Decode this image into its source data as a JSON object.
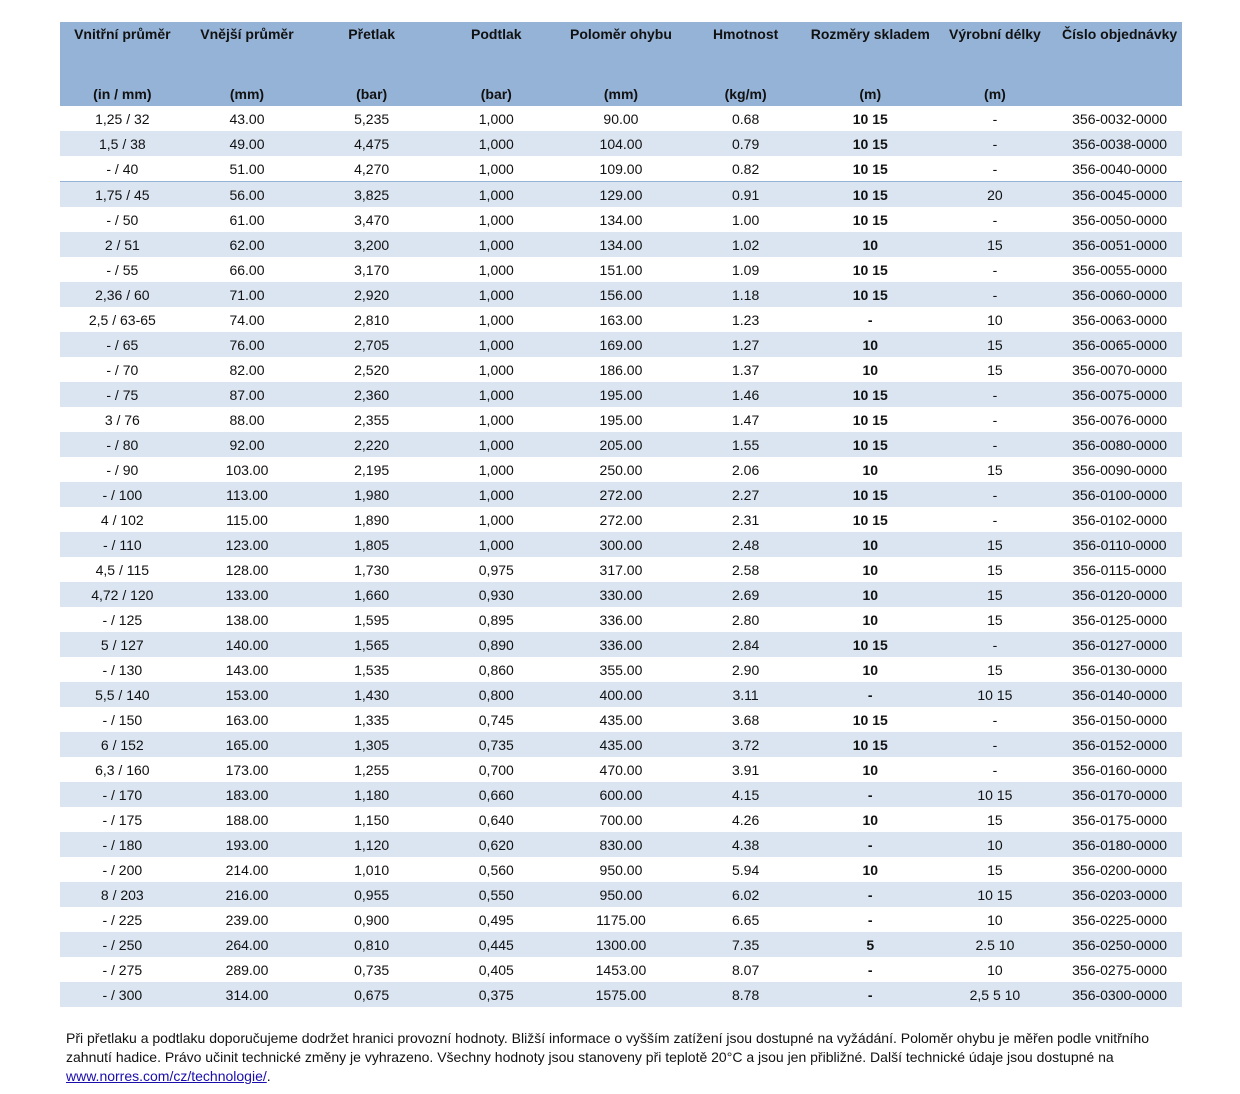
{
  "headers": [
    {
      "label": "Vnitřní průměr",
      "unit": "(in / mm)"
    },
    {
      "label": "Vnější průměr",
      "unit": "(mm)"
    },
    {
      "label": "Přetlak",
      "unit": "(bar)"
    },
    {
      "label": "Podtlak",
      "unit": "(bar)"
    },
    {
      "label": "Poloměr ohybu",
      "unit": "(mm)"
    },
    {
      "label": "Hmotnost",
      "unit": "(kg/m)"
    },
    {
      "label": "Rozměry skladem",
      "unit": "(m)"
    },
    {
      "label": "Výrobní délky",
      "unit": "(m)"
    },
    {
      "label": "Číslo objednávky",
      "unit": ""
    }
  ],
  "rows": [
    [
      "1,25 / 32",
      "43.00",
      "5,235",
      "1,000",
      "90.00",
      "0.68",
      "10 15",
      "-",
      "356-0032-0000"
    ],
    [
      "1,5 / 38",
      "49.00",
      "4,475",
      "1,000",
      "104.00",
      "0.79",
      "10 15",
      "-",
      "356-0038-0000"
    ],
    [
      "- / 40",
      "51.00",
      "4,270",
      "1,000",
      "109.00",
      "0.82",
      "10 15",
      "-",
      "356-0040-0000"
    ],
    [
      "1,75 / 45",
      "56.00",
      "3,825",
      "1,000",
      "129.00",
      "0.91",
      "10 15",
      "20",
      "356-0045-0000"
    ],
    [
      "- / 50",
      "61.00",
      "3,470",
      "1,000",
      "134.00",
      "1.00",
      "10 15",
      "-",
      "356-0050-0000"
    ],
    [
      "2 / 51",
      "62.00",
      "3,200",
      "1,000",
      "134.00",
      "1.02",
      "10",
      "15",
      "356-0051-0000"
    ],
    [
      "- / 55",
      "66.00",
      "3,170",
      "1,000",
      "151.00",
      "1.09",
      "10 15",
      "-",
      "356-0055-0000"
    ],
    [
      "2,36 / 60",
      "71.00",
      "2,920",
      "1,000",
      "156.00",
      "1.18",
      "10 15",
      "-",
      "356-0060-0000"
    ],
    [
      "2,5 / 63-65",
      "74.00",
      "2,810",
      "1,000",
      "163.00",
      "1.23",
      "-",
      "10",
      "356-0063-0000"
    ],
    [
      "- / 65",
      "76.00",
      "2,705",
      "1,000",
      "169.00",
      "1.27",
      "10",
      "15",
      "356-0065-0000"
    ],
    [
      "- / 70",
      "82.00",
      "2,520",
      "1,000",
      "186.00",
      "1.37",
      "10",
      "15",
      "356-0070-0000"
    ],
    [
      "- / 75",
      "87.00",
      "2,360",
      "1,000",
      "195.00",
      "1.46",
      "10 15",
      "-",
      "356-0075-0000"
    ],
    [
      "3 / 76",
      "88.00",
      "2,355",
      "1,000",
      "195.00",
      "1.47",
      "10 15",
      "-",
      "356-0076-0000"
    ],
    [
      "- / 80",
      "92.00",
      "2,220",
      "1,000",
      "205.00",
      "1.55",
      "10 15",
      "-",
      "356-0080-0000"
    ],
    [
      "- / 90",
      "103.00",
      "2,195",
      "1,000",
      "250.00",
      "2.06",
      "10",
      "15",
      "356-0090-0000"
    ],
    [
      "- / 100",
      "113.00",
      "1,980",
      "1,000",
      "272.00",
      "2.27",
      "10 15",
      "-",
      "356-0100-0000"
    ],
    [
      "4 / 102",
      "115.00",
      "1,890",
      "1,000",
      "272.00",
      "2.31",
      "10 15",
      "-",
      "356-0102-0000"
    ],
    [
      "- / 110",
      "123.00",
      "1,805",
      "1,000",
      "300.00",
      "2.48",
      "10",
      "15",
      "356-0110-0000"
    ],
    [
      "4,5 / 115",
      "128.00",
      "1,730",
      "0,975",
      "317.00",
      "2.58",
      "10",
      "15",
      "356-0115-0000"
    ],
    [
      "4,72 / 120",
      "133.00",
      "1,660",
      "0,930",
      "330.00",
      "2.69",
      "10",
      "15",
      "356-0120-0000"
    ],
    [
      "- / 125",
      "138.00",
      "1,595",
      "0,895",
      "336.00",
      "2.80",
      "10",
      "15",
      "356-0125-0000"
    ],
    [
      "5 / 127",
      "140.00",
      "1,565",
      "0,890",
      "336.00",
      "2.84",
      "10 15",
      "-",
      "356-0127-0000"
    ],
    [
      "- / 130",
      "143.00",
      "1,535",
      "0,860",
      "355.00",
      "2.90",
      "10",
      "15",
      "356-0130-0000"
    ],
    [
      "5,5 / 140",
      "153.00",
      "1,430",
      "0,800",
      "400.00",
      "3.11",
      "-",
      "10 15",
      "356-0140-0000"
    ],
    [
      "- / 150",
      "163.00",
      "1,335",
      "0,745",
      "435.00",
      "3.68",
      "10 15",
      "-",
      "356-0150-0000"
    ],
    [
      "6 / 152",
      "165.00",
      "1,305",
      "0,735",
      "435.00",
      "3.72",
      "10 15",
      "-",
      "356-0152-0000"
    ],
    [
      "6,3 / 160",
      "173.00",
      "1,255",
      "0,700",
      "470.00",
      "3.91",
      "10",
      "-",
      "356-0160-0000"
    ],
    [
      "- / 170",
      "183.00",
      "1,180",
      "0,660",
      "600.00",
      "4.15",
      "-",
      "10 15",
      "356-0170-0000"
    ],
    [
      "- / 175",
      "188.00",
      "1,150",
      "0,640",
      "700.00",
      "4.26",
      "10",
      "15",
      "356-0175-0000"
    ],
    [
      "- / 180",
      "193.00",
      "1,120",
      "0,620",
      "830.00",
      "4.38",
      "-",
      "10",
      "356-0180-0000"
    ],
    [
      "- / 200",
      "214.00",
      "1,010",
      "0,560",
      "950.00",
      "5.94",
      "10",
      "15",
      "356-0200-0000"
    ],
    [
      "8 / 203",
      "216.00",
      "0,955",
      "0,550",
      "950.00",
      "6.02",
      "-",
      "10 15",
      "356-0203-0000"
    ],
    [
      "- / 225",
      "239.00",
      "0,900",
      "0,495",
      "1175.00",
      "6.65",
      "-",
      "10",
      "356-0225-0000"
    ],
    [
      "- / 250",
      "264.00",
      "0,810",
      "0,445",
      "1300.00",
      "7.35",
      "5",
      "2.5 10",
      "356-0250-0000"
    ],
    [
      "- / 275",
      "289.00",
      "0,735",
      "0,405",
      "1453.00",
      "8.07",
      "-",
      "10",
      "356-0275-0000"
    ],
    [
      "- / 300",
      "314.00",
      "0,675",
      "0,375",
      "1575.00",
      "8.78",
      "-",
      "2,5 5 10",
      "356-0300-0000"
    ]
  ],
  "note": {
    "text": "Při přetlaku a podtlaku doporučujeme dodržet hranici provozní hodnoty. Bližší informace o vyšším zatížení jsou dostupné na vyžádání. Poloměr ohybu je měřen podle vnitřního zahnutí hadice. Právo učinit technické změny je vyhrazeno. Všechny hodnoty jsou stanoveny při teplotě 20°C a jsou jen přibližné. Další technické údaje jsou dostupné na ",
    "link": "www.norres.com/cz/technologie/",
    "end": "."
  },
  "colors": {
    "header": "#95b3d7",
    "alt_row": "#dbe5f1"
  }
}
